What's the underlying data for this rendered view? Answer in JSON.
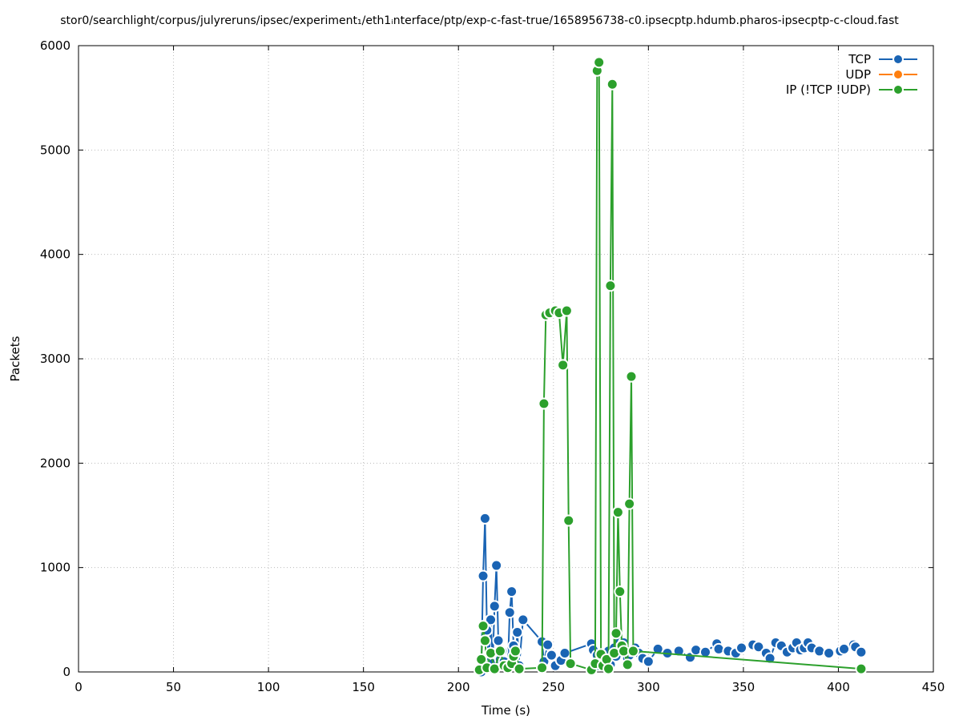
{
  "chart_data": {
    "type": "line",
    "title": "stor0/searchlight/corpus/julyreruns/ipsec/experiment₁/eth1ᵢnterface/ptp/exp-c-fast-true/1658956738-c0.ipsecptp.hdumb.pharos-ipsecptp-c-cloud.fast",
    "xlabel": "Time (s)",
    "ylabel": "Packets",
    "xlim": [
      0,
      450
    ],
    "ylim": [
      0,
      6000
    ],
    "x_ticks": [
      0,
      50,
      100,
      150,
      200,
      250,
      300,
      350,
      400,
      450
    ],
    "y_ticks": [
      0,
      1000,
      2000,
      3000,
      4000,
      5000,
      6000
    ],
    "grid": true,
    "legend_position": "top-right",
    "series": [
      {
        "name": "TCP",
        "color": "#1a64b4",
        "points": [
          [
            212,
            0
          ],
          [
            213,
            920
          ],
          [
            214,
            1470
          ],
          [
            215,
            400
          ],
          [
            216,
            100
          ],
          [
            217,
            500
          ],
          [
            218,
            80
          ],
          [
            219,
            630
          ],
          [
            220,
            1020
          ],
          [
            221,
            300
          ],
          [
            222,
            120
          ],
          [
            223,
            200
          ],
          [
            224,
            100
          ],
          [
            226,
            60
          ],
          [
            227,
            570
          ],
          [
            228,
            770
          ],
          [
            229,
            250
          ],
          [
            230,
            120
          ],
          [
            231,
            380
          ],
          [
            232,
            60
          ],
          [
            234,
            500
          ],
          [
            244,
            290
          ],
          [
            245,
            100
          ],
          [
            247,
            260
          ],
          [
            249,
            160
          ],
          [
            251,
            60
          ],
          [
            254,
            110
          ],
          [
            256,
            180
          ],
          [
            270,
            270
          ],
          [
            271,
            210
          ],
          [
            272,
            90
          ],
          [
            273,
            160
          ],
          [
            274,
            60
          ],
          [
            276,
            150
          ],
          [
            277,
            110
          ],
          [
            279,
            200
          ],
          [
            280,
            70
          ],
          [
            282,
            230
          ],
          [
            283,
            150
          ],
          [
            285,
            300
          ],
          [
            287,
            280
          ],
          [
            289,
            130
          ],
          [
            290,
            160
          ],
          [
            291,
            200
          ],
          [
            293,
            230
          ],
          [
            295,
            180
          ],
          [
            297,
            130
          ],
          [
            300,
            100
          ],
          [
            305,
            220
          ],
          [
            310,
            180
          ],
          [
            316,
            200
          ],
          [
            322,
            140
          ],
          [
            325,
            210
          ],
          [
            330,
            190
          ],
          [
            336,
            270
          ],
          [
            337,
            220
          ],
          [
            342,
            200
          ],
          [
            346,
            180
          ],
          [
            349,
            230
          ],
          [
            355,
            260
          ],
          [
            358,
            240
          ],
          [
            362,
            180
          ],
          [
            364,
            130
          ],
          [
            367,
            280
          ],
          [
            370,
            250
          ],
          [
            373,
            190
          ],
          [
            376,
            230
          ],
          [
            378,
            280
          ],
          [
            380,
            210
          ],
          [
            382,
            230
          ],
          [
            384,
            280
          ],
          [
            386,
            230
          ],
          [
            390,
            200
          ],
          [
            395,
            180
          ],
          [
            401,
            200
          ],
          [
            403,
            220
          ],
          [
            408,
            260
          ],
          [
            409,
            240
          ],
          [
            412,
            190
          ]
        ]
      },
      {
        "name": "UDP",
        "color": "#ff7f0e",
        "points": []
      },
      {
        "name": "IP (!TCP  !UDP)",
        "color": "#2ca02c",
        "points": [
          [
            211,
            20
          ],
          [
            212,
            120
          ],
          [
            213,
            440
          ],
          [
            214,
            300
          ],
          [
            215,
            40
          ],
          [
            217,
            180
          ],
          [
            219,
            30
          ],
          [
            222,
            200
          ],
          [
            224,
            60
          ],
          [
            226,
            40
          ],
          [
            228,
            80
          ],
          [
            229,
            150
          ],
          [
            230,
            200
          ],
          [
            232,
            30
          ],
          [
            244,
            40
          ],
          [
            245,
            2570
          ],
          [
            246,
            3420
          ],
          [
            248,
            3440
          ],
          [
            251,
            3460
          ],
          [
            253,
            3440
          ],
          [
            255,
            2940
          ],
          [
            257,
            3460
          ],
          [
            258,
            1450
          ],
          [
            259,
            80
          ],
          [
            270,
            20
          ],
          [
            272,
            80
          ],
          [
            273,
            5760
          ],
          [
            274,
            5840
          ],
          [
            275,
            170
          ],
          [
            276,
            60
          ],
          [
            278,
            120
          ],
          [
            279,
            30
          ],
          [
            280,
            3700
          ],
          [
            281,
            5630
          ],
          [
            282,
            180
          ],
          [
            283,
            370
          ],
          [
            284,
            1530
          ],
          [
            285,
            770
          ],
          [
            286,
            250
          ],
          [
            287,
            200
          ],
          [
            289,
            70
          ],
          [
            290,
            1610
          ],
          [
            291,
            2830
          ],
          [
            292,
            200
          ],
          [
            412,
            30
          ]
        ]
      }
    ]
  }
}
